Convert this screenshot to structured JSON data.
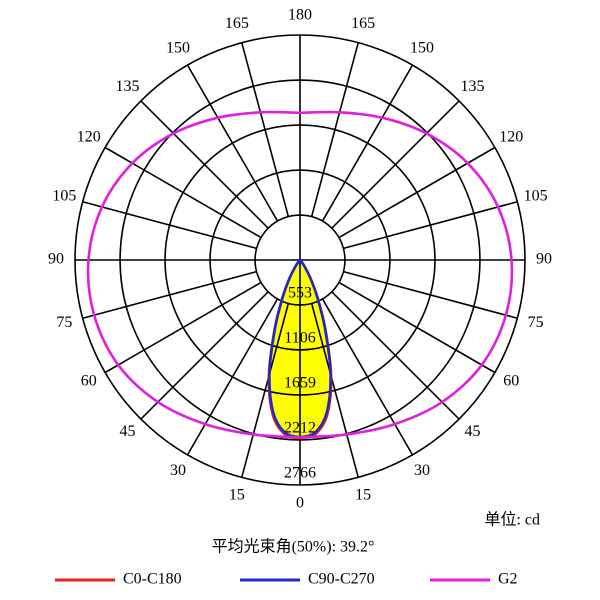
{
  "chart_data": {
    "type": "polar",
    "rlim": [
      0,
      2766
    ],
    "rticks": [
      553,
      1106,
      1659,
      2212,
      2766
    ],
    "angle_ticks": [
      0,
      15,
      30,
      45,
      60,
      75,
      90,
      105,
      120,
      135,
      150,
      165,
      180
    ],
    "unit_note": "单位: cd",
    "beam_note": "平均光束角(50%): 39.2°",
    "fill_color": "#ffff00",
    "series": [
      {
        "name": "C0-C180",
        "color": "#e8201a",
        "angles": [
          0,
          5,
          10,
          15,
          20,
          25,
          30,
          35,
          40,
          50
        ],
        "values": [
          2190,
          2150,
          1930,
          1480,
          920,
          510,
          255,
          100,
          30,
          0
        ]
      },
      {
        "name": "C90-C270",
        "color": "#1c2ac8",
        "angles": [
          0,
          5,
          10,
          15,
          20,
          25,
          30,
          35,
          40,
          50
        ],
        "values": [
          2180,
          2130,
          1900,
          1450,
          900,
          500,
          250,
          100,
          30,
          0
        ]
      },
      {
        "name": "G2",
        "color": "#e020e0",
        "angles": [
          0,
          15,
          30,
          45,
          60,
          75,
          90,
          105,
          120,
          135,
          150,
          165,
          180
        ],
        "values": [
          2180,
          2220,
          2330,
          2470,
          2580,
          2620,
          2600,
          2520,
          2380,
          2200,
          2020,
          1880,
          1810
        ]
      }
    ]
  }
}
